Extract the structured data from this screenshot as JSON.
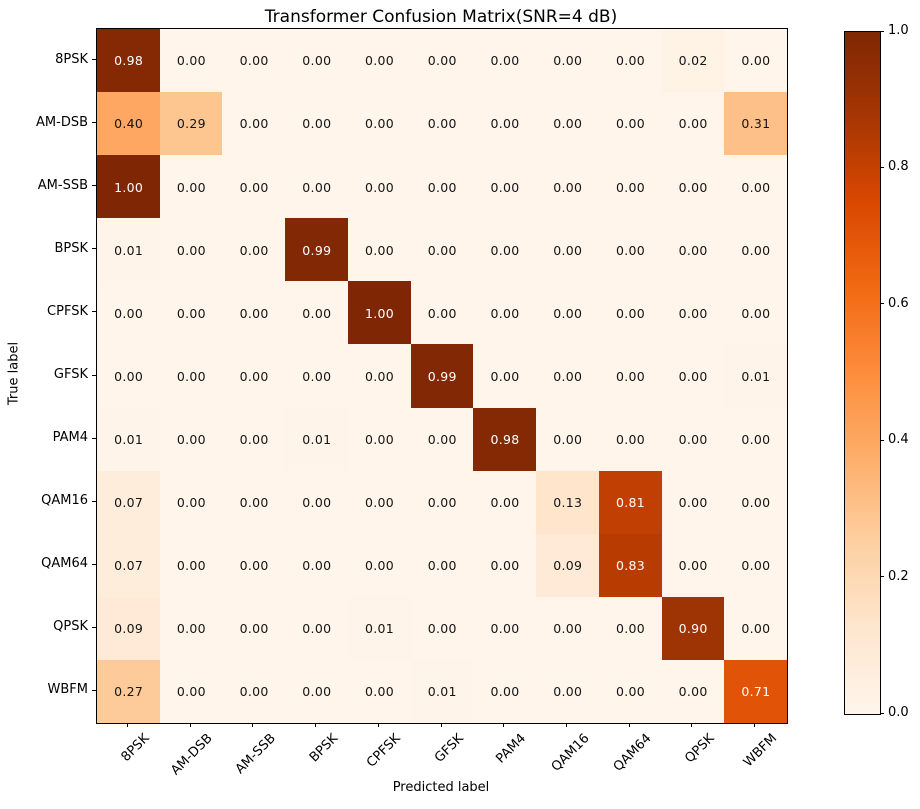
{
  "chart_data": {
    "type": "heatmap",
    "title": "Transformer Confusion Matrix(SNR=4 dB)",
    "xlabel": "Predicted label",
    "ylabel": "True label",
    "classes": [
      "8PSK",
      "AM-DSB",
      "AM-SSB",
      "BPSK",
      "CPFSK",
      "GFSK",
      "PAM4",
      "QAM16",
      "QAM64",
      "QPSK",
      "WBFM"
    ],
    "matrix": [
      [
        0.98,
        0.0,
        0.0,
        0.0,
        0.0,
        0.0,
        0.0,
        0.0,
        0.0,
        0.02,
        0.0
      ],
      [
        0.4,
        0.29,
        0.0,
        0.0,
        0.0,
        0.0,
        0.0,
        0.0,
        0.0,
        0.0,
        0.31
      ],
      [
        1.0,
        0.0,
        0.0,
        0.0,
        0.0,
        0.0,
        0.0,
        0.0,
        0.0,
        0.0,
        0.0
      ],
      [
        0.01,
        0.0,
        0.0,
        0.99,
        0.0,
        0.0,
        0.0,
        0.0,
        0.0,
        0.0,
        0.0
      ],
      [
        0.0,
        0.0,
        0.0,
        0.0,
        1.0,
        0.0,
        0.0,
        0.0,
        0.0,
        0.0,
        0.0
      ],
      [
        0.0,
        0.0,
        0.0,
        0.0,
        0.0,
        0.99,
        0.0,
        0.0,
        0.0,
        0.0,
        0.01
      ],
      [
        0.01,
        0.0,
        0.0,
        0.01,
        0.0,
        0.0,
        0.98,
        0.0,
        0.0,
        0.0,
        0.0
      ],
      [
        0.07,
        0.0,
        0.0,
        0.0,
        0.0,
        0.0,
        0.0,
        0.13,
        0.81,
        0.0,
        0.0
      ],
      [
        0.07,
        0.0,
        0.0,
        0.0,
        0.0,
        0.0,
        0.0,
        0.09,
        0.83,
        0.0,
        0.0
      ],
      [
        0.09,
        0.0,
        0.0,
        0.0,
        0.01,
        0.0,
        0.0,
        0.0,
        0.0,
        0.9,
        0.0
      ],
      [
        0.27,
        0.0,
        0.0,
        0.0,
        0.0,
        0.01,
        0.0,
        0.0,
        0.0,
        0.0,
        0.71
      ]
    ],
    "value_format_decimals": 2,
    "value_range": [
      0.0,
      1.0
    ],
    "colorbar_ticks": [
      1.0,
      0.8,
      0.6,
      0.4,
      0.2,
      0.0
    ],
    "legend_position": "right-colorbar",
    "grid": false,
    "text_threshold": 0.5,
    "text_color_light": "#ffffff",
    "text_color_dark": "#141414",
    "colormap": {
      "name": "Oranges",
      "anchors": [
        [
          0.0,
          "#fff5eb"
        ],
        [
          0.125,
          "#fee6ce"
        ],
        [
          0.25,
          "#fdd0a2"
        ],
        [
          0.375,
          "#fdae6b"
        ],
        [
          0.5,
          "#fd8d3c"
        ],
        [
          0.625,
          "#f16913"
        ],
        [
          0.75,
          "#d94801"
        ],
        [
          0.875,
          "#a63603"
        ],
        [
          1.0,
          "#7f2704"
        ]
      ]
    }
  }
}
